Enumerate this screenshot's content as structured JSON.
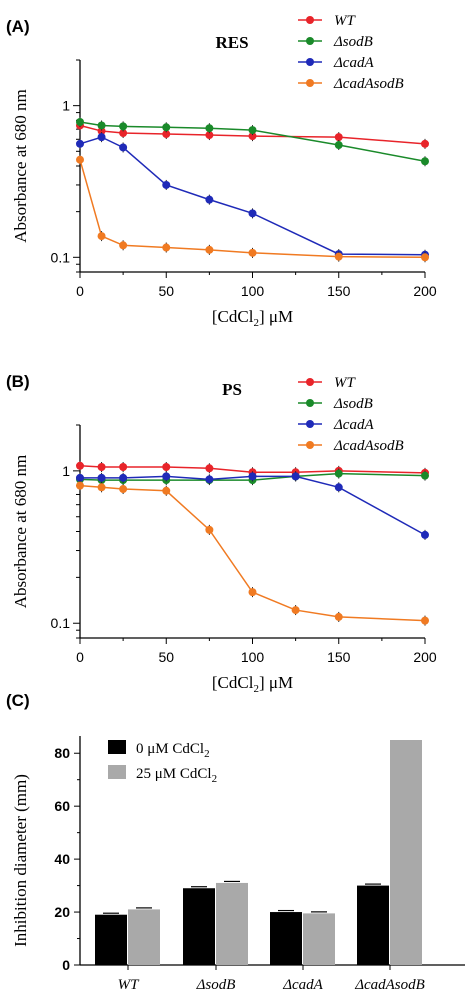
{
  "chart_data": [
    {
      "panel": "(A)",
      "type": "line",
      "title": "RES",
      "xlabel": "[CdCl",
      "xlabel_sub": "2",
      "xlabel_tail": "] μM",
      "ylabel": "Absorbance at 680 nm",
      "yscale": "log",
      "ylim": [
        0.08,
        2
      ],
      "xlim": [
        0,
        200
      ],
      "x_ticks": [
        "0",
        "50",
        "100",
        "150",
        "200"
      ],
      "y_ticks": [
        "0.1",
        "1"
      ],
      "legend_position": "top-right",
      "series": [
        {
          "name": "WT",
          "color": "#e8242a",
          "x": [
            0,
            12.5,
            25,
            50,
            75,
            100,
            150,
            200
          ],
          "y": [
            0.74,
            0.68,
            0.66,
            0.65,
            0.64,
            0.63,
            0.62,
            0.56
          ]
        },
        {
          "name": "ΔsodB",
          "color": "#1a8a2a",
          "x": [
            0,
            12.5,
            25,
            50,
            75,
            100,
            150,
            200
          ],
          "y": [
            0.78,
            0.74,
            0.73,
            0.72,
            0.71,
            0.69,
            0.55,
            0.43
          ]
        },
        {
          "name": "ΔcadA",
          "color": "#1f2ab8",
          "x": [
            0,
            12.5,
            25,
            50,
            75,
            100,
            150,
            200
          ],
          "y": [
            0.56,
            0.62,
            0.53,
            0.3,
            0.24,
            0.195,
            0.105,
            0.104
          ]
        },
        {
          "name": "ΔcadAsodB",
          "color": "#f07a22",
          "x": [
            0,
            12.5,
            25,
            50,
            75,
            100,
            150,
            200
          ],
          "y": [
            0.44,
            0.138,
            0.12,
            0.116,
            0.112,
            0.107,
            0.101,
            0.1
          ]
        }
      ]
    },
    {
      "panel": "(B)",
      "type": "line",
      "title": "PS",
      "xlabel": "[CdCl",
      "xlabel_sub": "2",
      "xlabel_tail": "] μM",
      "ylabel": "Absorbance at 680 nm",
      "yscale": "log",
      "ylim": [
        0.08,
        2
      ],
      "xlim": [
        0,
        200
      ],
      "x_ticks": [
        "0",
        "50",
        "100",
        "150",
        "200"
      ],
      "y_ticks": [
        "0.1",
        "1"
      ],
      "legend_position": "top-right",
      "series": [
        {
          "name": "WT",
          "color": "#e8242a",
          "x": [
            0,
            12.5,
            25,
            50,
            75,
            100,
            125,
            150,
            200
          ],
          "y": [
            1.08,
            1.06,
            1.06,
            1.06,
            1.04,
            0.98,
            0.98,
            1.0,
            0.97
          ]
        },
        {
          "name": "ΔsodB",
          "color": "#1a8a2a",
          "x": [
            0,
            12.5,
            25,
            50,
            75,
            100,
            125,
            150,
            200
          ],
          "y": [
            0.88,
            0.87,
            0.87,
            0.87,
            0.87,
            0.87,
            0.92,
            0.96,
            0.93
          ]
        },
        {
          "name": "ΔcadA",
          "color": "#1f2ab8",
          "x": [
            0,
            12.5,
            25,
            50,
            75,
            100,
            125,
            150,
            200
          ],
          "y": [
            0.9,
            0.9,
            0.9,
            0.92,
            0.88,
            0.92,
            0.92,
            0.78,
            0.38
          ]
        },
        {
          "name": "ΔcadAsodB",
          "color": "#f07a22",
          "x": [
            0,
            12.5,
            25,
            50,
            75,
            100,
            125,
            150,
            200
          ],
          "y": [
            0.8,
            0.78,
            0.76,
            0.74,
            0.41,
            0.16,
            0.122,
            0.11,
            0.104
          ]
        }
      ]
    },
    {
      "panel": "(C)",
      "type": "bar",
      "ylabel": "Inhibition diameter (mm)",
      "ylim": [
        0,
        85
      ],
      "y_ticks": [
        "0",
        "20",
        "40",
        "60",
        "80"
      ],
      "categories": [
        "WT",
        "ΔsodB",
        "ΔcadA",
        "ΔcadAsodB"
      ],
      "legend_position": "top-left",
      "series": [
        {
          "name": "0 μM CdCl",
          "name_sub": "2",
          "color": "#000000",
          "values": [
            19,
            29,
            20,
            30
          ]
        },
        {
          "name": "25 μM CdCl",
          "name_sub": "2",
          "color": "#a9a9a9",
          "values": [
            21,
            31,
            19.5,
            85
          ]
        }
      ]
    }
  ]
}
